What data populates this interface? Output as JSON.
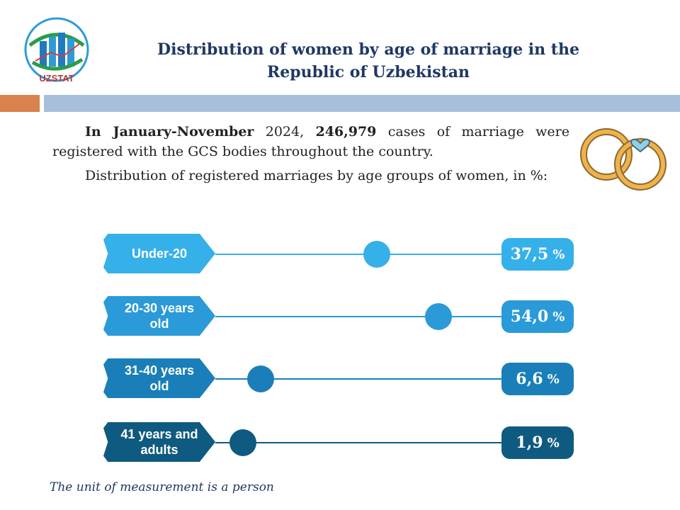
{
  "header": {
    "logo_text": "UZSTAT",
    "title_line1": "Distribution of women by age of marriage in the",
    "title_line2": "Republic of Uzbekistan"
  },
  "intro": {
    "p1_bold1": "In January-November",
    "p1_text1": " 2024, ",
    "p1_bold2": "246,979",
    "p1_text2": " cases of marriage were registered with the GCS bodies throughout the country.",
    "p2": "Distribution of registered marriages by age groups of women, in %:"
  },
  "chart_data": {
    "type": "bar",
    "categories": [
      "Under-20",
      "20-30 years old",
      "31-40 years old",
      "41 years and adults"
    ],
    "values": [
      37.5,
      54.0,
      6.6,
      1.9
    ],
    "value_labels": [
      "37,5",
      "54,0",
      "6,6",
      "1,9"
    ],
    "unit": "%",
    "colors": [
      "#36b0e8",
      "#2a9ad8",
      "#1a7fb8",
      "#0f5a80"
    ],
    "title": "",
    "xlabel": "",
    "ylabel": ""
  },
  "footnote": "The unit of measurement is a person"
}
